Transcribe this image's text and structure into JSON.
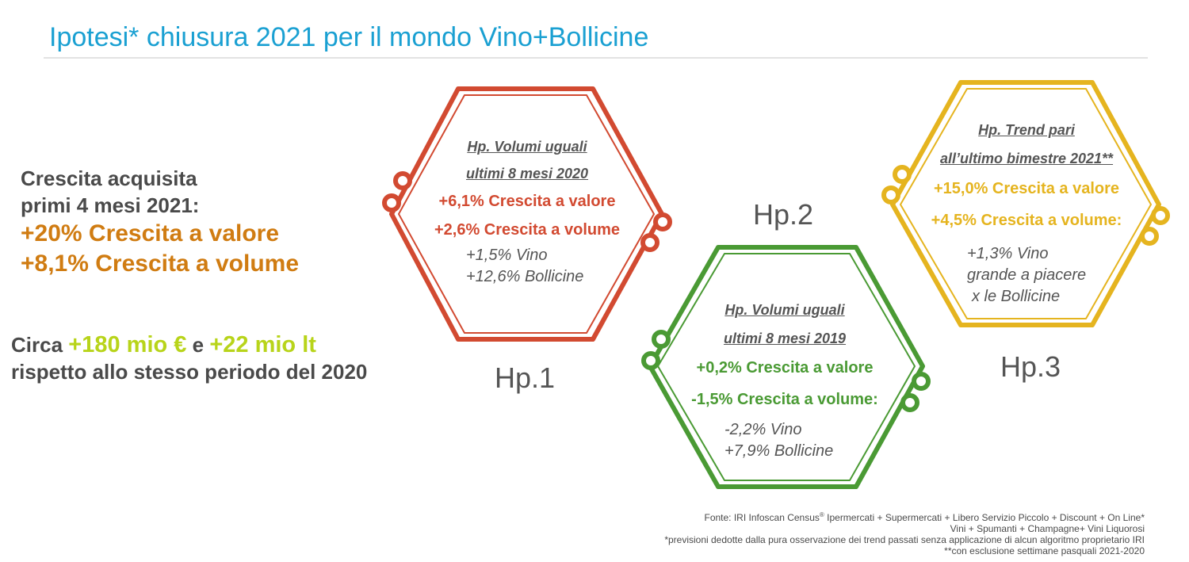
{
  "title": "Ipotesi* chiusura 2021 per il mondo Vino+Bollicine",
  "left": {
    "line1": "Crescita acquisita",
    "line2": "primi 4 mesi 2021:",
    "valore": "+20% Crescita a valore",
    "volume": "+8,1% Crescita a volume",
    "circa_prefix": "Circa",
    "circa_money": "+180 mio €",
    "circa_and": "e",
    "circa_liters": "+22 mio lt",
    "circa_suffix": "rispetto allo stesso periodo del 2020"
  },
  "hp1": {
    "label": "Hp.1",
    "head1": "Hp. Volumi  uguali",
    "head2": "ultimi  8 mesi 2020",
    "valore": "+6,1% Crescita a valore",
    "volume": "+2,6% Crescita a volume",
    "detail1": "+1,5% Vino",
    "detail2": "+12,6% Bollicine",
    "color": "#d24a31"
  },
  "hp2": {
    "label": "Hp.2",
    "head1": "Hp. Volumi uguali",
    "head2": "ultimi 8 mesi 2019",
    "valore": "+0,2% Crescita a valore",
    "volume": "-1,5% Crescita a volume:",
    "detail1": "-2,2% Vino",
    "detail2": "+7,9% Bollicine",
    "color": "#4a9a34"
  },
  "hp3": {
    "label": "Hp.3",
    "head1": "Hp. Trend  pari",
    "head2": "all’ultimo bimestre 2021**",
    "valore": "+15,0% Crescita a valore",
    "volume": "+4,5% Crescita a volume:",
    "detail1": "+1,3% Vino",
    "detail2": "grande a piacere",
    "detail3": "x le Bollicine",
    "color": "#e5b41f"
  },
  "footnotes": {
    "line1": "Fonte: IRI Infoscan Census",
    "line1_reg": "®",
    "line1_rest": " Ipermercati + Supermercati + Libero Servizio Piccolo + Discount + On Line*",
    "line2": "Vini + Spumanti + Champagne+ Vini Liquorosi",
    "line3": "*previsioni dedotte dalla pura osservazione dei trend passati senza applicazione di alcun algoritmo proprietario IRI",
    "line4": "**con esclusione settimane pasquali 2021-2020"
  }
}
